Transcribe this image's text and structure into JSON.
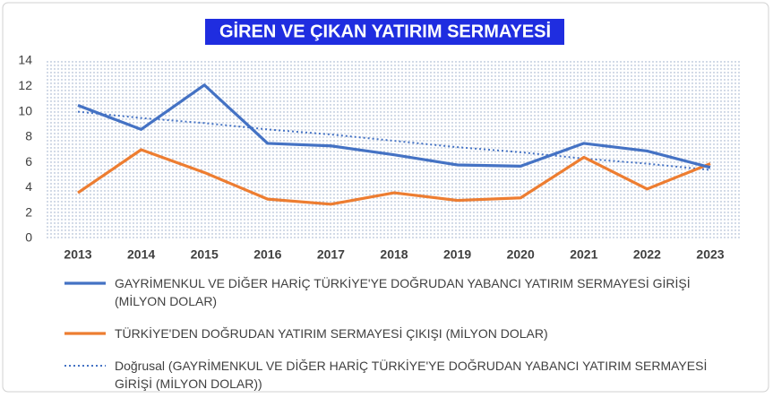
{
  "chart_data": {
    "type": "line",
    "title": "GİREN VE ÇIKAN YATIRIM SERMAYESİ",
    "categories": [
      "2013",
      "2014",
      "2015",
      "2016",
      "2017",
      "2018",
      "2019",
      "2020",
      "2021",
      "2022",
      "2023"
    ],
    "series": [
      {
        "name": "GAYRİMENKUL VE DİĞER HARİÇ TÜRKİYE'YE DOĞRUDAN YABANCI YATIRIM SERMAYESİ GİRİŞİ (MİLYON DOLAR)",
        "color": "#4472c4",
        "style": "solid",
        "values": [
          10.5,
          8.6,
          12.1,
          7.5,
          7.3,
          6.6,
          5.8,
          5.7,
          7.5,
          6.9,
          5.6
        ]
      },
      {
        "name": "TÜRKİYE'DEN DOĞRUDAN YATIRIM SERMAYESİ ÇIKIŞI (MİLYON DOLAR)",
        "color": "#ed7d31",
        "style": "solid",
        "values": [
          3.6,
          7.0,
          5.2,
          3.1,
          2.7,
          3.6,
          3.0,
          3.2,
          6.4,
          3.9,
          5.9
        ]
      },
      {
        "name": "Doğrusal (GAYRİMENKUL VE DİĞER HARİÇ TÜRKİYE'YE DOĞRUDAN YABANCI YATIRIM SERMAYESİ GİRİŞİ (MİLYON DOLAR))",
        "color": "#4472c4",
        "style": "dotted",
        "values": [
          10.0,
          9.5,
          9.1,
          8.6,
          8.2,
          7.7,
          7.2,
          6.8,
          6.3,
          5.9,
          5.4
        ]
      }
    ],
    "ylim": [
      0,
      14
    ],
    "yticks": [
      0,
      2,
      4,
      6,
      8,
      10,
      12,
      14
    ],
    "grid": false
  }
}
